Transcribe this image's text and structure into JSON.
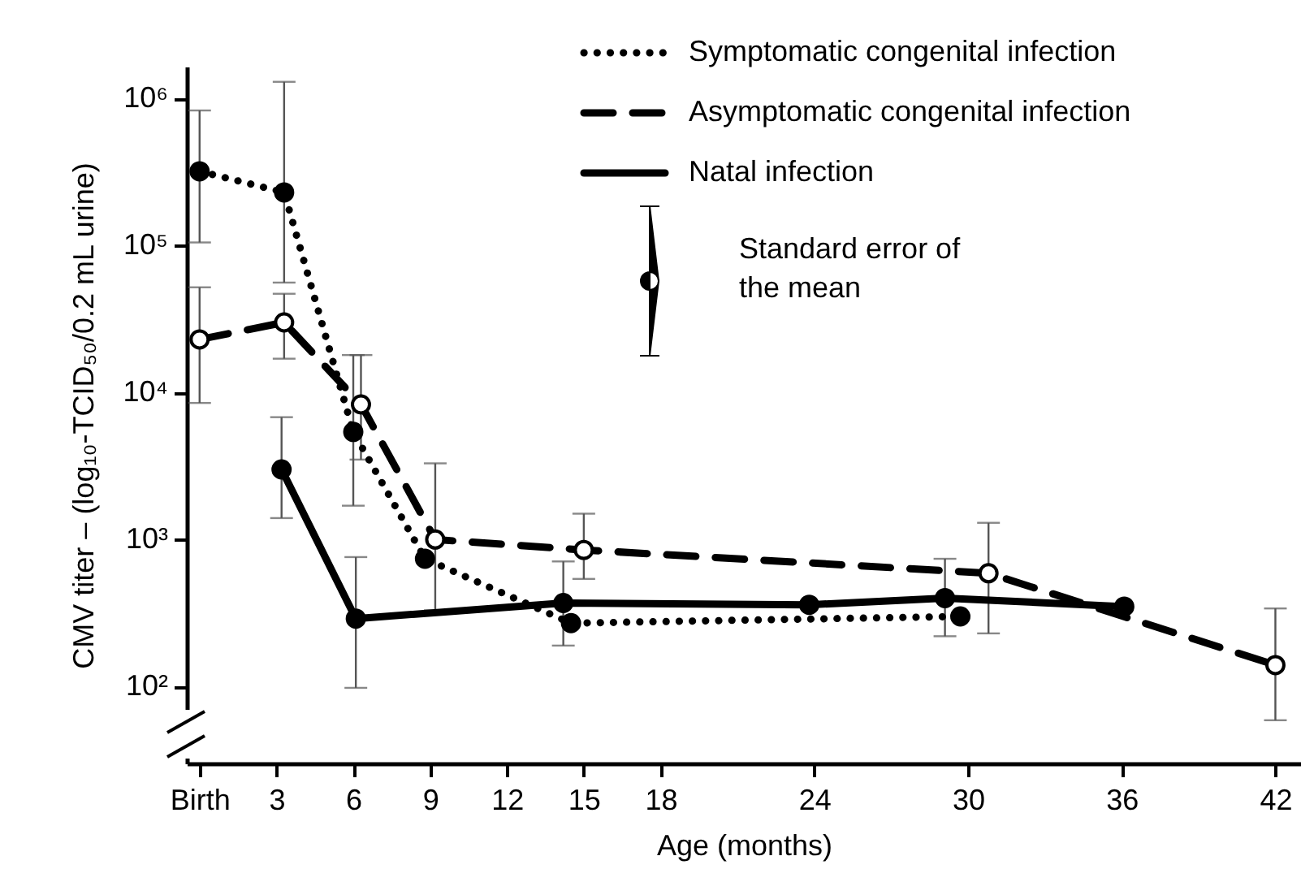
{
  "chart_data": {
    "type": "line",
    "xlabel": "Age (months)",
    "ylabel": "CMV titer – (log₁₀-TCID₅₀/0.2 mL urine)",
    "annotations": [
      "Standard error of the mean"
    ],
    "xlim": [
      -0.5,
      43
    ],
    "xticks": [
      {
        "value": 0,
        "label": "Birth"
      },
      3,
      6,
      9,
      12,
      15,
      18,
      24,
      30,
      36,
      42
    ],
    "ylim": [
      30,
      1650000
    ],
    "yticks": [
      {
        "value": 100,
        "label": "10²"
      },
      {
        "value": 1000,
        "label": "10³"
      },
      {
        "value": 10000,
        "label": "10⁴"
      },
      {
        "value": 100000,
        "label": "10⁵"
      },
      {
        "value": 1000000,
        "label": "10⁶"
      }
    ],
    "log": "y",
    "legend": "top right",
    "series": [
      {
        "name": "Symptomatic congenital infection",
        "color": "#000000",
        "line_style": "dotted",
        "marker": "circle",
        "x": [
          0,
          3.3,
          6,
          8.8,
          14.5,
          29.7
        ],
        "values": [
          320000,
          230000,
          5400,
          740,
          270,
          300
        ],
        "errors": [
          [
            105000,
            830000
          ],
          [
            56000,
            1300000
          ],
          [
            1700,
            18000
          ],
          null,
          null,
          null
        ]
      },
      {
        "name": "Asymptomatic congenital infection",
        "color": "#000000",
        "line_style": "dashed",
        "marker": "circle-open",
        "x": [
          0,
          3.3,
          6.3,
          9.2,
          15,
          30.8,
          42
        ],
        "values": [
          23000,
          30000,
          8300,
          1000,
          850,
          590,
          140
        ],
        "errors": [
          [
            8500,
            52000
          ],
          [
            17000,
            47000
          ],
          [
            3500,
            18000
          ],
          [
            330,
            3300
          ],
          [
            540,
            1500
          ],
          [
            230,
            1300
          ],
          [
            59,
            340
          ]
        ]
      },
      {
        "name": "Natal infection",
        "color": "#000000",
        "line_style": "solid",
        "marker": "circle",
        "x": [
          3.2,
          6.1,
          14.2,
          23.8,
          29.1,
          36.1
        ],
        "values": [
          3000,
          290,
          370,
          360,
          400,
          350
        ],
        "errors": [
          [
            1400,
            6800
          ],
          [
            98,
            760
          ],
          [
            190,
            710
          ],
          null,
          [
            220,
            740
          ],
          null
        ]
      }
    ]
  }
}
